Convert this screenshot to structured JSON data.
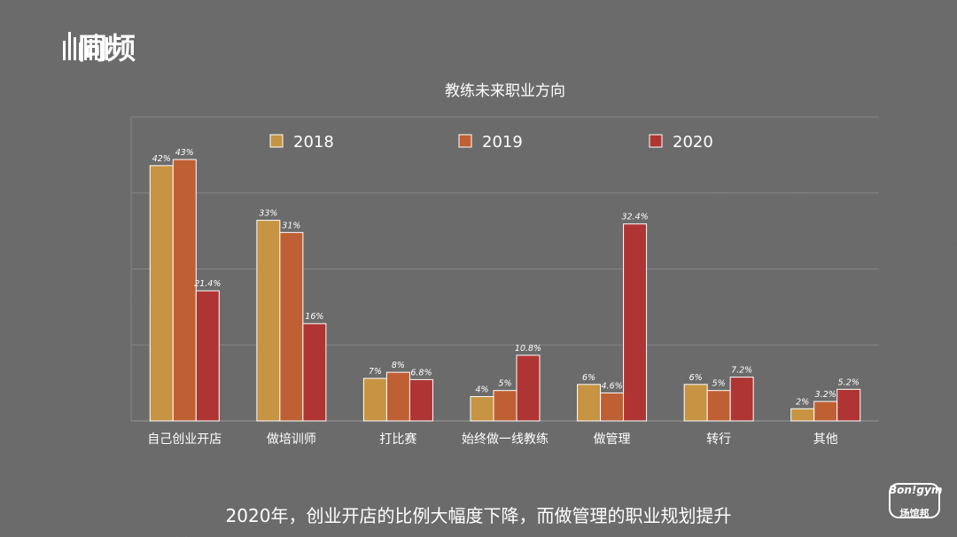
{
  "brand": {
    "logo_text": "同频",
    "badge_top": "Bon!gym",
    "badge_bottom": "场馆邦"
  },
  "caption": "2020年，创业开店的比例大幅度下降，而做管理的职业规划提升",
  "colors": {
    "2018": "#c69442",
    "2019": "#bf5f34",
    "2020": "#ae3534"
  },
  "chart_data": {
    "type": "bar",
    "title": "教练未来职业方向",
    "xlabel": "",
    "ylabel": "",
    "ylim": [
      0,
      50
    ],
    "grid": true,
    "legend_position": "top",
    "categories": [
      "自己创业开店",
      "做培训师",
      "打比赛",
      "始终做一线教练",
      "做管理",
      "转行",
      "其他"
    ],
    "series": [
      {
        "name": "2018",
        "values": [
          42,
          33,
          7,
          4,
          6,
          6,
          2
        ],
        "labels": [
          "42%",
          "33%",
          "7%",
          "4%",
          "6%",
          "6%",
          "2%"
        ]
      },
      {
        "name": "2019",
        "values": [
          43,
          31,
          8,
          5,
          4.6,
          5,
          3.2
        ],
        "labels": [
          "43%",
          "31%",
          "8%",
          "5%",
          "4.6%",
          "5%",
          "3.2%"
        ]
      },
      {
        "name": "2020",
        "values": [
          21.4,
          16,
          6.8,
          10.8,
          32.4,
          7.2,
          5.2
        ],
        "labels": [
          "21.4%",
          "16%",
          "6.8%",
          "10.8%",
          "32.4%",
          "7.2%",
          "5.2%"
        ]
      }
    ]
  }
}
